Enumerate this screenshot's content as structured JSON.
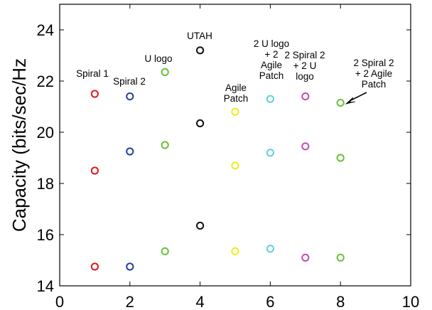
{
  "chart_data": {
    "type": "scatter",
    "title": "",
    "xlabel": "",
    "ylabel": "Capacity (bits/sec/Hz",
    "xlim": [
      0,
      10
    ],
    "ylim": [
      14,
      25
    ],
    "xticks": [
      "0",
      "2",
      "4",
      "6",
      "8",
      "10"
    ],
    "yticks": [
      "14",
      "16",
      "18",
      "20",
      "22",
      "24"
    ],
    "grid": false,
    "marker": "open-circle",
    "series": [
      {
        "name": "Spiral 1",
        "color": "#dd1c1c",
        "points": [
          [
            1,
            21.5
          ],
          [
            1,
            18.5
          ],
          [
            1,
            14.75
          ]
        ]
      },
      {
        "name": "Spiral 2",
        "color": "#2a3ea8",
        "points": [
          [
            2,
            21.4
          ],
          [
            2,
            19.25
          ],
          [
            2,
            14.75
          ]
        ]
      },
      {
        "name": "U logo",
        "color": "#6cbf3a",
        "points": [
          [
            3,
            22.35
          ],
          [
            3,
            19.5
          ],
          [
            3,
            15.35
          ]
        ]
      },
      {
        "name": "UTAH",
        "color": "#111111",
        "points": [
          [
            4,
            23.2
          ],
          [
            4,
            20.35
          ],
          [
            4,
            16.35
          ]
        ]
      },
      {
        "name": "Agile Patch",
        "color": "#eeee1a",
        "points": [
          [
            5,
            20.8
          ],
          [
            5,
            18.7
          ],
          [
            5,
            15.35
          ]
        ]
      },
      {
        "name": "2 U logo + 2 Agile Patch",
        "color": "#5fcfdc",
        "points": [
          [
            6,
            21.3
          ],
          [
            6,
            19.2
          ],
          [
            6,
            15.45
          ]
        ]
      },
      {
        "name": "2 Spiral 2 + 2 U logo",
        "color": "#c44ab6",
        "points": [
          [
            7,
            21.4
          ],
          [
            7,
            19.45
          ],
          [
            7,
            15.1
          ]
        ]
      },
      {
        "name": "2 Spiral 2 + 2 Agile Patch",
        "color": "#6cbf3a",
        "points": [
          [
            8,
            21.15
          ],
          [
            8,
            19.0
          ],
          [
            8,
            15.1
          ]
        ]
      }
    ],
    "annotations": [
      {
        "lines": [
          "Spiral 1"
        ]
      },
      {
        "lines": [
          "Spiral 2"
        ]
      },
      {
        "lines": [
          "U logo"
        ]
      },
      {
        "lines": [
          "UTAH"
        ]
      },
      {
        "lines": [
          "Agile",
          "Patch"
        ]
      },
      {
        "lines": [
          "2 U logo",
          "+ 2",
          "Agile",
          "Patch"
        ]
      },
      {
        "lines": [
          "2 Spiral 2",
          "+ 2 U",
          "logo"
        ]
      },
      {
        "lines": [
          "2 Spiral 2",
          "+ 2 Agile",
          "Patch"
        ],
        "arrow": true
      }
    ]
  }
}
